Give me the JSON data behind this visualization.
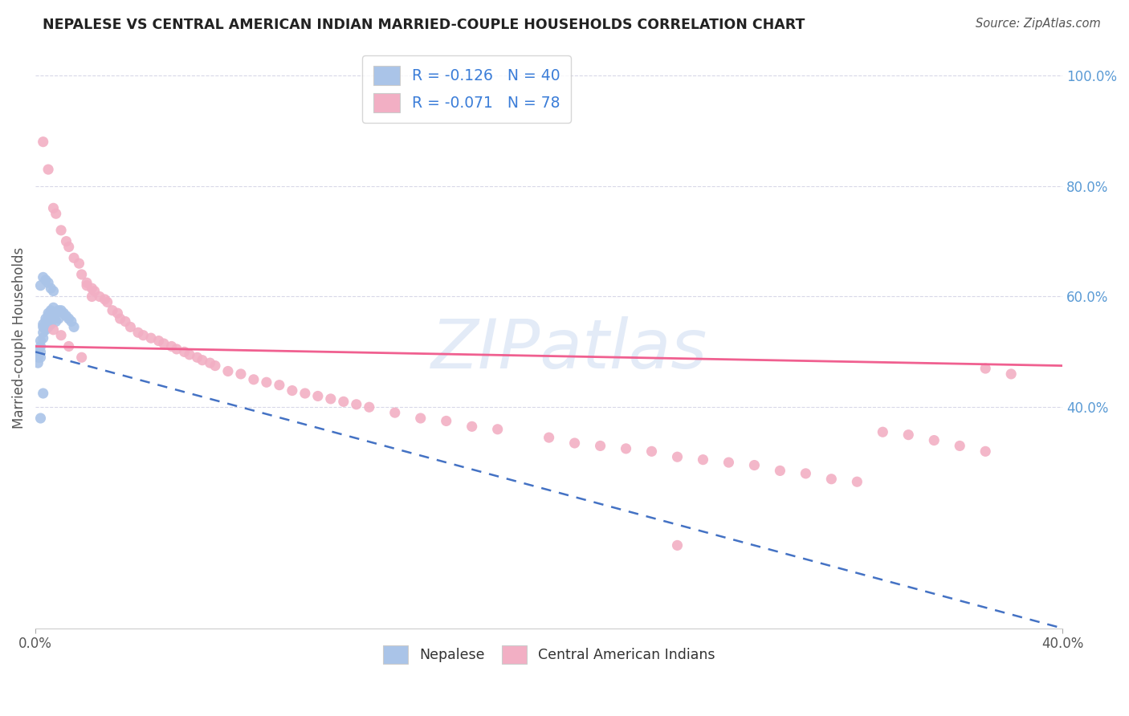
{
  "title": "NEPALESE VS CENTRAL AMERICAN INDIAN MARRIED-COUPLE HOUSEHOLDS CORRELATION CHART",
  "source": "Source: ZipAtlas.com",
  "ylabel": "Married-couple Households",
  "xlim": [
    0.0,
    0.4
  ],
  "ylim": [
    0.0,
    1.05
  ],
  "background_color": "#ffffff",
  "grid_color": "#d8d8e8",
  "nepalese_color": "#aac4e8",
  "central_american_color": "#f2afc4",
  "nepalese_line_color": "#4472c4",
  "central_american_line_color": "#f06090",
  "nepalese_R": -0.126,
  "nepalese_N": 40,
  "central_american_R": -0.071,
  "central_american_N": 78,
  "nep_x": [
    0.001,
    0.001,
    0.001,
    0.002,
    0.002,
    0.002,
    0.002,
    0.003,
    0.003,
    0.003,
    0.003,
    0.004,
    0.004,
    0.004,
    0.005,
    0.005,
    0.005,
    0.006,
    0.006,
    0.006,
    0.007,
    0.007,
    0.008,
    0.008,
    0.009,
    0.009,
    0.01,
    0.011,
    0.012,
    0.013,
    0.014,
    0.015,
    0.002,
    0.003,
    0.004,
    0.005,
    0.006,
    0.007,
    0.003,
    0.002
  ],
  "nep_y": [
    0.5,
    0.49,
    0.48,
    0.52,
    0.51,
    0.5,
    0.49,
    0.55,
    0.545,
    0.535,
    0.525,
    0.56,
    0.555,
    0.54,
    0.57,
    0.565,
    0.545,
    0.575,
    0.56,
    0.55,
    0.58,
    0.565,
    0.57,
    0.555,
    0.575,
    0.56,
    0.575,
    0.57,
    0.565,
    0.56,
    0.555,
    0.545,
    0.62,
    0.635,
    0.63,
    0.625,
    0.615,
    0.61,
    0.425,
    0.38
  ],
  "ca_x": [
    0.003,
    0.005,
    0.007,
    0.008,
    0.01,
    0.012,
    0.013,
    0.015,
    0.017,
    0.018,
    0.02,
    0.022,
    0.023,
    0.025,
    0.027,
    0.028,
    0.03,
    0.032,
    0.033,
    0.035,
    0.037,
    0.04,
    0.042,
    0.045,
    0.048,
    0.05,
    0.053,
    0.055,
    0.058,
    0.06,
    0.063,
    0.065,
    0.068,
    0.07,
    0.075,
    0.08,
    0.085,
    0.09,
    0.095,
    0.1,
    0.105,
    0.11,
    0.115,
    0.12,
    0.125,
    0.13,
    0.14,
    0.15,
    0.16,
    0.17,
    0.18,
    0.2,
    0.21,
    0.22,
    0.23,
    0.24,
    0.25,
    0.26,
    0.27,
    0.28,
    0.29,
    0.3,
    0.31,
    0.32,
    0.33,
    0.34,
    0.35,
    0.36,
    0.37,
    0.38,
    0.007,
    0.01,
    0.013,
    0.018,
    0.02,
    0.022,
    0.25,
    0.37
  ],
  "ca_y": [
    0.88,
    0.83,
    0.76,
    0.75,
    0.72,
    0.7,
    0.69,
    0.67,
    0.66,
    0.64,
    0.625,
    0.615,
    0.61,
    0.6,
    0.595,
    0.59,
    0.575,
    0.57,
    0.56,
    0.555,
    0.545,
    0.535,
    0.53,
    0.525,
    0.52,
    0.515,
    0.51,
    0.505,
    0.5,
    0.495,
    0.49,
    0.485,
    0.48,
    0.475,
    0.465,
    0.46,
    0.45,
    0.445,
    0.44,
    0.43,
    0.425,
    0.42,
    0.415,
    0.41,
    0.405,
    0.4,
    0.39,
    0.38,
    0.375,
    0.365,
    0.36,
    0.345,
    0.335,
    0.33,
    0.325,
    0.32,
    0.31,
    0.305,
    0.3,
    0.295,
    0.285,
    0.28,
    0.27,
    0.265,
    0.355,
    0.35,
    0.34,
    0.33,
    0.32,
    0.46,
    0.54,
    0.53,
    0.51,
    0.49,
    0.62,
    0.6,
    0.15,
    0.47
  ]
}
